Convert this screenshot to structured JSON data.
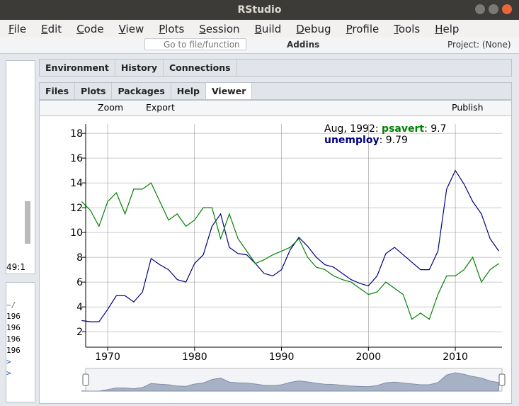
{
  "window": {
    "title": "RStudio"
  },
  "menu": [
    "File",
    "Edit",
    "Code",
    "View",
    "Plots",
    "Session",
    "Build",
    "Debug",
    "Profile",
    "Tools",
    "Help"
  ],
  "toolbar": {
    "goto": "Go to file/function",
    "addins": "Addins",
    "project": "Project: (None)"
  },
  "top_pane": {
    "tabs": [
      "Environment",
      "History",
      "Connections"
    ]
  },
  "bottom_pane": {
    "tabs": [
      "Files",
      "Plots",
      "Packages",
      "Help",
      "Viewer"
    ],
    "tools": [
      "Zoom",
      "Export",
      "Publish"
    ]
  },
  "left_pane": {
    "position": "49:1",
    "dir": "~/",
    "lines": [
      "196",
      "196",
      "196",
      "196"
    ],
    "prompts": [
      ">",
      ">"
    ]
  },
  "chart_data": {
    "type": "line",
    "x": [
      1967,
      1968,
      1969,
      1970,
      1971,
      1972,
      1973,
      1974,
      1975,
      1976,
      1977,
      1978,
      1979,
      1980,
      1981,
      1982,
      1983,
      1984,
      1985,
      1986,
      1987,
      1988,
      1989,
      1990,
      1991,
      1992,
      1993,
      1994,
      1995,
      1996,
      1997,
      1998,
      1999,
      2000,
      2001,
      2002,
      2003,
      2004,
      2005,
      2006,
      2007,
      2008,
      2009,
      2010,
      2011,
      2012,
      2013,
      2014,
      2015
    ],
    "series": [
      {
        "name": "psavert",
        "color": "#008000",
        "values": [
          12.5,
          11.8,
          10.5,
          12.5,
          13.2,
          11.5,
          13.5,
          13.5,
          14.0,
          12.5,
          11.0,
          11.5,
          10.5,
          11.0,
          12.0,
          12.0,
          9.5,
          11.5,
          9.5,
          8.5,
          7.5,
          7.8,
          8.2,
          8.5,
          8.8,
          9.5,
          8.0,
          7.2,
          7.0,
          6.5,
          6.2,
          6.0,
          5.5,
          5.0,
          5.2,
          6.0,
          5.5,
          5.0,
          3.0,
          3.5,
          3.0,
          5.0,
          6.5,
          6.5,
          7.0,
          8.0,
          6.0,
          7.0,
          7.5
        ]
      },
      {
        "name": "unemploy",
        "color": "#000080",
        "values": [
          2.9,
          2.8,
          2.8,
          3.8,
          4.9,
          4.9,
          4.4,
          5.2,
          7.9,
          7.4,
          7.0,
          6.2,
          6.0,
          7.5,
          8.2,
          10.5,
          11.5,
          8.8,
          8.3,
          8.2,
          7.5,
          6.7,
          6.5,
          7.0,
          8.6,
          9.6,
          8.9,
          8.0,
          7.4,
          7.2,
          6.7,
          6.2,
          5.9,
          5.7,
          6.5,
          8.3,
          8.8,
          8.2,
          7.6,
          7.0,
          7.0,
          8.5,
          13.5,
          15.0,
          13.9,
          12.5,
          11.5,
          9.5,
          8.5
        ]
      }
    ],
    "legend": {
      "date": "Aug, 1992",
      "values": [
        9.7,
        9.79
      ]
    },
    "xlim": [
      1967.47,
      2015.37
    ],
    "xticks": [
      1970,
      1980,
      1990,
      2000,
      2010
    ],
    "ylim": [
      0.75,
      18.75
    ],
    "yticks": [
      2,
      4,
      6,
      8,
      10,
      12,
      14,
      16,
      18
    ],
    "grid": true
  }
}
